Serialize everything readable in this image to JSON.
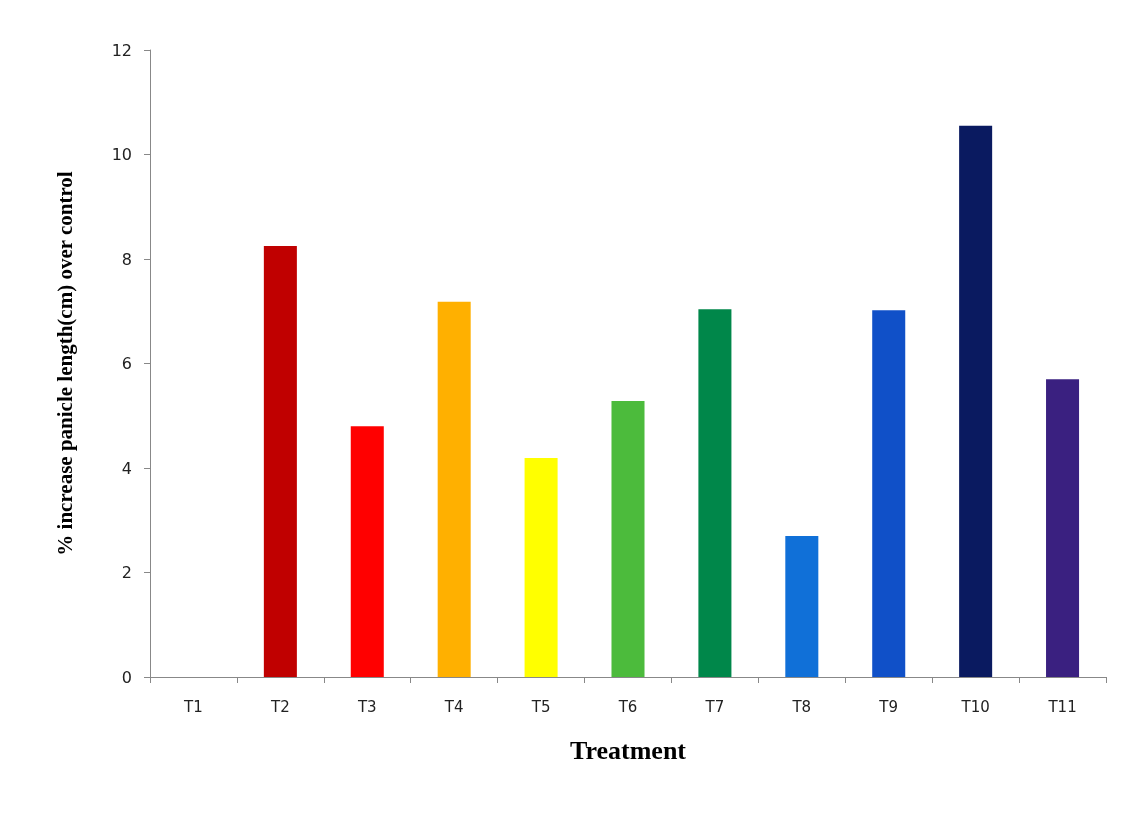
{
  "chart_data": {
    "type": "bar",
    "xlabel": "Treatment",
    "ylabel": "% increase panicle length(cm) over control",
    "categories": [
      "T1",
      "T2",
      "T3",
      "T4",
      "T5",
      "T6",
      "T7",
      "T8",
      "T9",
      "T10",
      "T11"
    ],
    "values": [
      0,
      8.25,
      4.8,
      7.18,
      4.19,
      5.28,
      7.04,
      2.7,
      7.02,
      10.55,
      5.7
    ],
    "colors": [
      "#c00000",
      "#c00000",
      "#ff0000",
      "#ffb000",
      "#ffff00",
      "#4cbb3c",
      "#00874a",
      "#1070d8",
      "#1050c8",
      "#0a1a60",
      "#3a2080"
    ],
    "ylim": [
      0,
      12
    ],
    "yticks": [
      0,
      2,
      4,
      6,
      8,
      10,
      12
    ],
    "grid": false
  }
}
